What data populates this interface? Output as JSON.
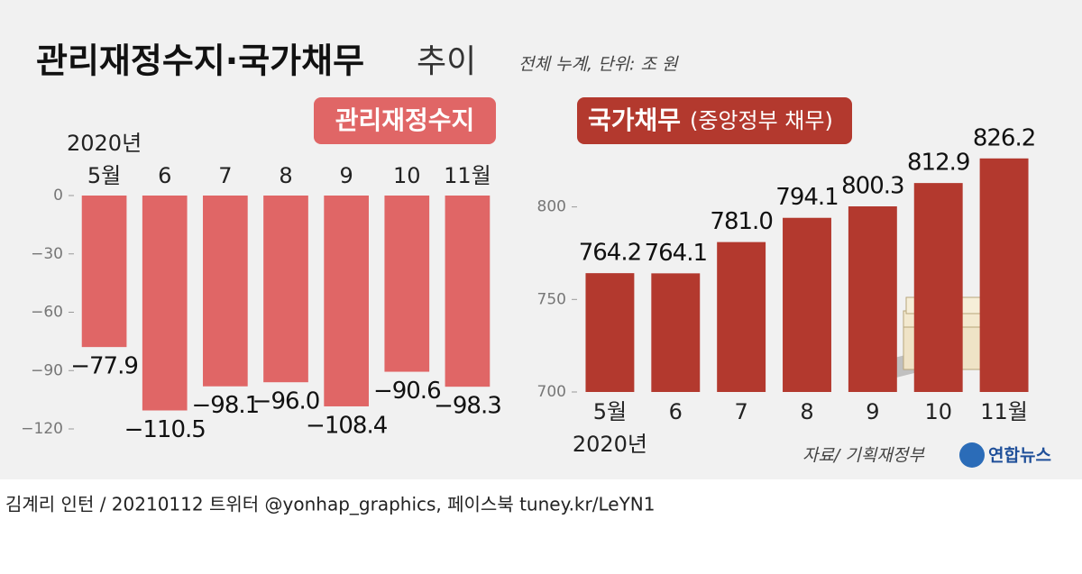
{
  "header": {
    "title": "관리재정수지·국가채무",
    "title_suffix": "추이",
    "note": "전체 누계, 단위: 조 원"
  },
  "chart_data": [
    {
      "type": "bar",
      "title": "관리재정수지",
      "x_note": "2020년",
      "categories": [
        "5월",
        "6",
        "7",
        "8",
        "9",
        "10",
        "11월"
      ],
      "values": [
        -77.9,
        -110.5,
        -98.1,
        -96.0,
        -108.4,
        -90.6,
        -98.3
      ],
      "value_labels": [
        "−77.9",
        "−110.5",
        "−98.1",
        "−96.0",
        "−108.4",
        "−90.6",
        "−98.3"
      ],
      "color": "#e06666",
      "ylim": [
        -120,
        0
      ],
      "yticks": [
        {
          "value": 0,
          "label": "0"
        },
        {
          "value": -30,
          "label": "−30"
        },
        {
          "value": -60,
          "label": "−60"
        },
        {
          "value": -90,
          "label": "−90"
        },
        {
          "value": -120,
          "label": "−120"
        }
      ]
    },
    {
      "type": "bar",
      "title": "국가채무",
      "subtitle": "(중앙정부 채무)",
      "x_note": "2020년",
      "categories": [
        "5월",
        "6",
        "7",
        "8",
        "9",
        "10",
        "11월"
      ],
      "values": [
        764.2,
        764.1,
        781.0,
        794.1,
        800.3,
        812.9,
        826.2
      ],
      "value_labels": [
        "764.2",
        "764.1",
        "781.0",
        "794.1",
        "800.3",
        "812.9",
        "826.2"
      ],
      "color": "#b3392e",
      "ylim": [
        700,
        830
      ],
      "yticks": [
        700,
        750,
        800
      ]
    }
  ],
  "footer": {
    "source": "자료/ 기획재정부",
    "agency": "연합뉴스",
    "credit": "김계리 인턴 /  20210112  트위터 @yonhap_graphics, 페이스북 tuney.kr/LeYN1"
  }
}
